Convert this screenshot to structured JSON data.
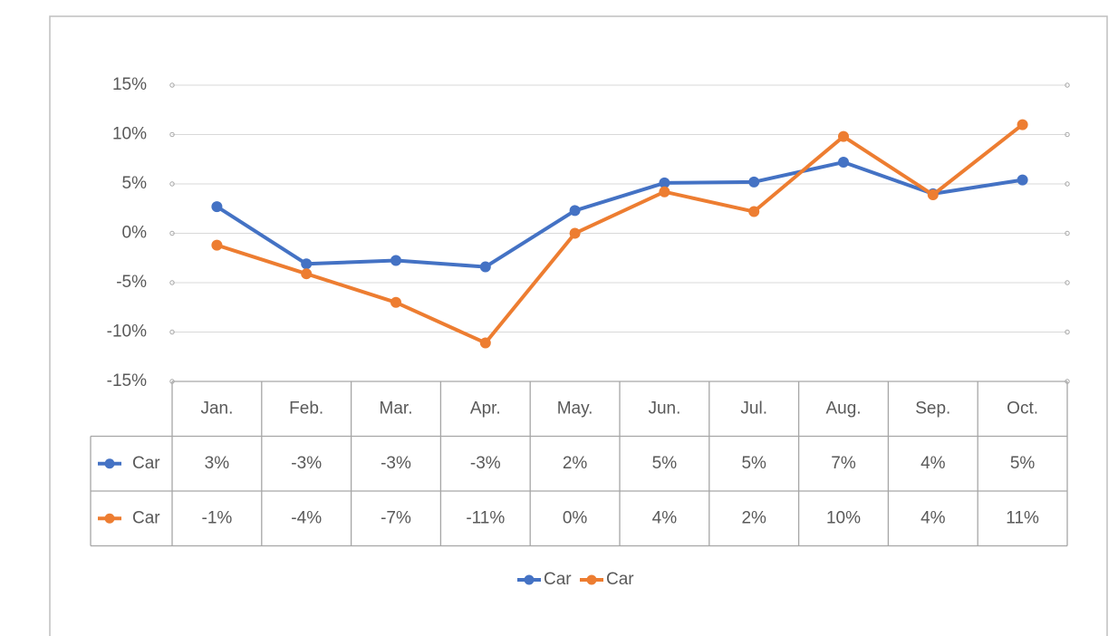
{
  "chart_data": {
    "type": "line",
    "categories": [
      "Jan.",
      "Feb.",
      "Mar.",
      "Apr.",
      "May.",
      "Jun.",
      "Jul.",
      "Aug.",
      "Sep.",
      "Oct."
    ],
    "series": [
      {
        "name": "Car",
        "color": "#4472c4",
        "values": [
          2.7,
          -3.1,
          -2.75,
          -3.4,
          2.3,
          5.1,
          5.2,
          7.2,
          4.0,
          5.4
        ],
        "value_labels": [
          "3%",
          "-3%",
          "-3%",
          "-3%",
          "2%",
          "5%",
          "5%",
          "7%",
          "4%",
          "5%"
        ]
      },
      {
        "name": "Car",
        "color": "#ed7d31",
        "values": [
          -1.2,
          -4.1,
          -7.0,
          -11.1,
          0,
          4.2,
          2.2,
          9.8,
          3.9,
          11.0
        ],
        "value_labels": [
          "-1%",
          "-4%",
          "-7%",
          "-11%",
          "0%",
          "4%",
          "2%",
          "10%",
          "4%",
          "11%"
        ]
      }
    ],
    "ylim": [
      -15,
      15
    ],
    "yticks": [
      {
        "value": -15,
        "label": "-15%"
      },
      {
        "value": -10,
        "label": "-10%"
      },
      {
        "value": -5,
        "label": "-5%"
      },
      {
        "value": 0,
        "label": "0%"
      },
      {
        "value": 5,
        "label": "5%"
      },
      {
        "value": 10,
        "label": "10%"
      },
      {
        "value": 15,
        "label": "15%"
      }
    ],
    "grid": true,
    "legend": "bottom"
  }
}
